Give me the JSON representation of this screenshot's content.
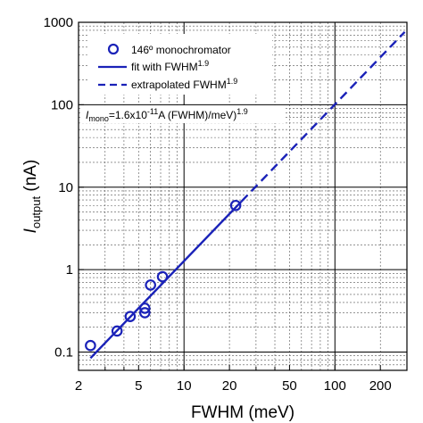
{
  "chart_data": {
    "type": "scatter",
    "x_scale": "log",
    "y_scale": "log",
    "xlim": [
      2,
      300
    ],
    "ylim": [
      0.06,
      1000
    ],
    "x_ticks": [
      {
        "value": 2,
        "label": "2"
      },
      {
        "value": 5,
        "label": "5"
      },
      {
        "value": 10,
        "label": "10"
      },
      {
        "value": 20,
        "label": "20"
      },
      {
        "value": 50,
        "label": "50"
      },
      {
        "value": 100,
        "label": "100"
      },
      {
        "value": 200,
        "label": "200"
      }
    ],
    "y_ticks": [
      {
        "value": 0.1,
        "label": "0.1"
      },
      {
        "value": 1,
        "label": "1"
      },
      {
        "value": 10,
        "label": "10"
      },
      {
        "value": 100,
        "label": "100"
      },
      {
        "value": 1000,
        "label": "1000"
      }
    ],
    "extra_x_ticks": [
      3,
      4,
      30,
      40,
      300
    ],
    "xlabel": "FWHM (meV)",
    "ylabel_main": "I",
    "ylabel_sub": "output",
    "ylabel_unit": " (nA)",
    "grid": "dashed minor, solid decade lines",
    "legend_position": "top-left",
    "legend": [
      {
        "key": "markers",
        "name": "146º monochromator"
      },
      {
        "key": "fit",
        "name": "fit with FWHM",
        "sup": "1.9"
      },
      {
        "key": "extrap",
        "name": "extrapolated FWHM",
        "sup": "1.9"
      }
    ],
    "annotation": {
      "lhs_main": "I",
      "lhs_sub": "mono",
      "eq": "=1.6x10",
      "exp": "-11",
      "rest": "A (FWHM)/meV)",
      "power": "1.9"
    },
    "series": [
      {
        "key": "markers",
        "style": "open-circle",
        "color": "#1a22b8",
        "points": [
          {
            "x": 2.4,
            "y": 0.12
          },
          {
            "x": 3.6,
            "y": 0.18
          },
          {
            "x": 4.4,
            "y": 0.27
          },
          {
            "x": 5.5,
            "y": 0.3
          },
          {
            "x": 5.5,
            "y": 0.34
          },
          {
            "x": 6.0,
            "y": 0.65
          },
          {
            "x": 7.2,
            "y": 0.82
          },
          {
            "x": 22.0,
            "y": 6.0
          }
        ]
      },
      {
        "key": "fit",
        "style": "solid",
        "color": "#1a22b8",
        "x_range": [
          2.4,
          24
        ],
        "coef": 0.016,
        "exponent": 1.9
      },
      {
        "key": "extrap",
        "style": "dashed",
        "color": "#1a22b8",
        "x_range": [
          24,
          290
        ],
        "coef": 0.016,
        "exponent": 1.9
      }
    ]
  }
}
